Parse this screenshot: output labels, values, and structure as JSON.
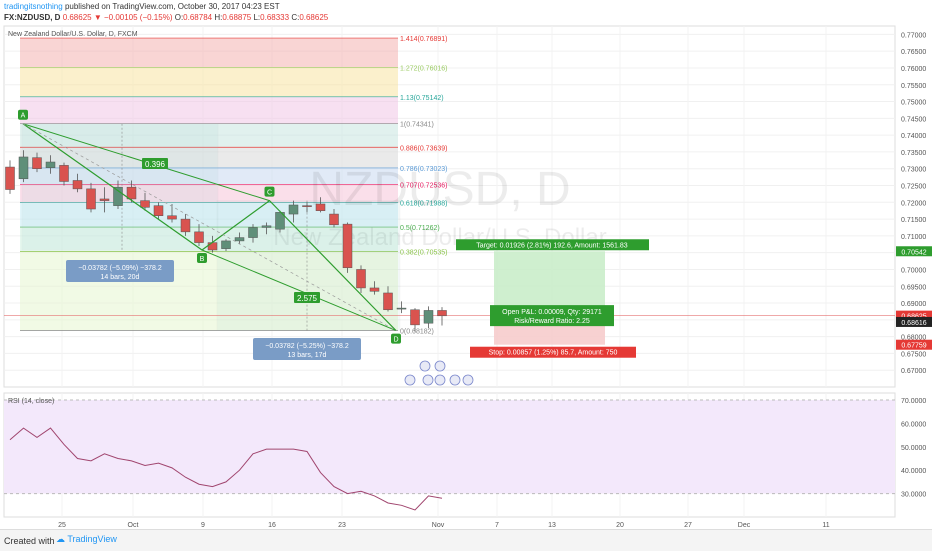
{
  "header": {
    "author": "tradingitsnothing",
    "published_text": "published on TradingView.com, October 30, 2017 04:23 EST",
    "symbol": "FX:NZDUSD, D",
    "last": "0.68625",
    "change": "▼ −0.00105 (−0.15%)",
    "o_label": "O:",
    "o": "0.68784",
    "h_label": "H:",
    "h": "0.68875",
    "l_label": "L:",
    "l": "0.68333",
    "c_label": "C:",
    "c": "0.68625"
  },
  "legend_title": "New Zealand Dollar/U.S. Dollar, D, FXCM",
  "watermark": {
    "symbol": "NZDUSD, D",
    "name": "New Zealand Dollar/U.S. Dollar"
  },
  "chart_data": [
    {
      "type": "candlestick",
      "title": "New Zealand Dollar/U.S. Dollar, D, FXCM",
      "ylim": [
        0.665,
        0.7725
      ],
      "y_ticks": [
        0.67,
        0.675,
        0.68,
        0.685,
        0.69,
        0.695,
        0.7,
        0.705,
        0.71,
        0.715,
        0.72,
        0.725,
        0.73,
        0.735,
        0.74,
        0.745,
        0.75,
        0.755,
        0.76,
        0.765,
        0.77
      ],
      "x_ticks": [
        "25",
        "Oct",
        "9",
        "16",
        "23",
        "Nov",
        "7",
        "13",
        "20",
        "27",
        "Dec",
        "11"
      ],
      "ohlc": [
        [
          0.7305,
          0.7325,
          0.7225,
          0.7238
        ],
        [
          0.727,
          0.7355,
          0.726,
          0.7335
        ],
        [
          0.7333,
          0.7348,
          0.729,
          0.73
        ],
        [
          0.7303,
          0.734,
          0.7285,
          0.732
        ],
        [
          0.731,
          0.7318,
          0.725,
          0.7262
        ],
        [
          0.7265,
          0.7285,
          0.723,
          0.724
        ],
        [
          0.724,
          0.7258,
          0.717,
          0.718
        ],
        [
          0.721,
          0.7245,
          0.717,
          0.7205
        ],
        [
          0.719,
          0.7265,
          0.718,
          0.7245
        ],
        [
          0.7245,
          0.7265,
          0.72,
          0.721
        ],
        [
          0.7205,
          0.7228,
          0.7175,
          0.7185
        ],
        [
          0.719,
          0.72,
          0.715,
          0.716
        ],
        [
          0.716,
          0.7195,
          0.714,
          0.715
        ],
        [
          0.715,
          0.7165,
          0.71,
          0.7112
        ],
        [
          0.7112,
          0.7135,
          0.707,
          0.708
        ],
        [
          0.708,
          0.71,
          0.705,
          0.7058
        ],
        [
          0.7062,
          0.709,
          0.7055,
          0.7085
        ],
        [
          0.7085,
          0.711,
          0.7075,
          0.7095
        ],
        [
          0.7095,
          0.7135,
          0.708,
          0.7125
        ],
        [
          0.7125,
          0.714,
          0.7105,
          0.713
        ],
        [
          0.712,
          0.7175,
          0.711,
          0.717
        ],
        [
          0.7165,
          0.7205,
          0.714,
          0.7192
        ],
        [
          0.719,
          0.72,
          0.717,
          0.7188
        ],
        [
          0.7195,
          0.7215,
          0.717,
          0.7175
        ],
        [
          0.7165,
          0.718,
          0.7125,
          0.7133
        ],
        [
          0.7135,
          0.714,
          0.699,
          0.7005
        ],
        [
          0.7,
          0.7012,
          0.693,
          0.6945
        ],
        [
          0.6945,
          0.6965,
          0.6925,
          0.6935
        ],
        [
          0.693,
          0.695,
          0.6875,
          0.688
        ],
        [
          0.6885,
          0.6905,
          0.687,
          0.6885
        ],
        [
          0.688,
          0.6885,
          0.6815,
          0.6835
        ],
        [
          0.684,
          0.689,
          0.6825,
          0.6878
        ],
        [
          0.6878,
          0.6888,
          0.6833,
          0.6862
        ]
      ],
      "fib_levels": [
        {
          "label": "1.414",
          "value": 0.76891,
          "color": "#e53935"
        },
        {
          "label": "1.272",
          "value": 0.76016,
          "color": "#9ccc65"
        },
        {
          "label": "1.13",
          "value": 0.75142,
          "color": "#26a69a"
        },
        {
          "label": "1",
          "value": 0.74341,
          "color": "#888888"
        },
        {
          "label": "0.886",
          "value": 0.73639,
          "color": "#e53935"
        },
        {
          "label": "0.786",
          "value": 0.73023,
          "color": "#5c9bd6"
        },
        {
          "label": "0.707",
          "value": 0.72536,
          "color": "#e91e63"
        },
        {
          "label": "0.618",
          "value": 0.71988,
          "color": "#26a69a"
        },
        {
          "label": "0.5",
          "value": 0.71262,
          "color": "#4caf50"
        },
        {
          "label": "0.382",
          "value": 0.70535,
          "color": "#8bc34a"
        },
        {
          "label": "0",
          "value": 0.68182,
          "color": "#888888"
        }
      ],
      "pattern_points": [
        {
          "label": "A",
          "bar": 0,
          "price": 0.7434
        },
        {
          "label": "B",
          "bar": 14,
          "price": 0.7058
        },
        {
          "label": "C",
          "bar": 19,
          "price": 0.7205
        },
        {
          "label": "D",
          "bar": 28,
          "price": 0.6818
        }
      ],
      "pattern_ratios": [
        "0.396",
        "2.575"
      ],
      "measure_boxes": [
        {
          "line1": "−0.03782 (−5.09%) −378.2",
          "line2": "14 bars, 20d"
        },
        {
          "line1": "−0.03782 (−5.25%) −378.2",
          "line2": "13 bars, 17d"
        }
      ],
      "position": {
        "target": "Target: 0.01926 (2.81%) 192.6, Amount: 1561.83",
        "open_pl": "Open P&L: 0.00009, Qty: 29171",
        "rr": "Risk/Reward Ratio: 2.25",
        "stop": "Stop: 0.00857 (1.25%) 85.7, Amount: 750",
        "entry": 0.687,
        "target_price": 0.70542,
        "stop_price": 0.67759
      },
      "price_badges": [
        {
          "text": "0.70542",
          "value": 0.70542,
          "color": "#2e9d2e"
        },
        {
          "text": "0.68625",
          "value": 0.68625,
          "color": "#e53935"
        },
        {
          "text": "0.68616",
          "value": 0.68616,
          "color": "#222222"
        },
        {
          "text": "0.67759",
          "value": 0.67759,
          "color": "#e53935"
        }
      ]
    },
    {
      "type": "line",
      "title": "RSI (14, close)",
      "ylim": [
        20,
        73
      ],
      "y_ticks": [
        30,
        40,
        50,
        60,
        70
      ],
      "y_tick_labels": [
        "30.0000",
        "40.0000",
        "50.0000",
        "60.0000",
        "70.0000"
      ],
      "bands": [
        30,
        70
      ],
      "values": [
        53,
        58,
        54,
        58,
        51,
        45,
        44,
        47,
        45,
        44,
        42,
        43,
        41,
        37,
        34,
        33,
        35,
        40,
        47,
        49,
        49,
        49,
        48,
        39,
        33,
        30,
        31,
        29,
        26,
        25,
        23,
        29,
        28
      ]
    }
  ],
  "footer": {
    "created": "Created with",
    "brand": "TradingView"
  }
}
